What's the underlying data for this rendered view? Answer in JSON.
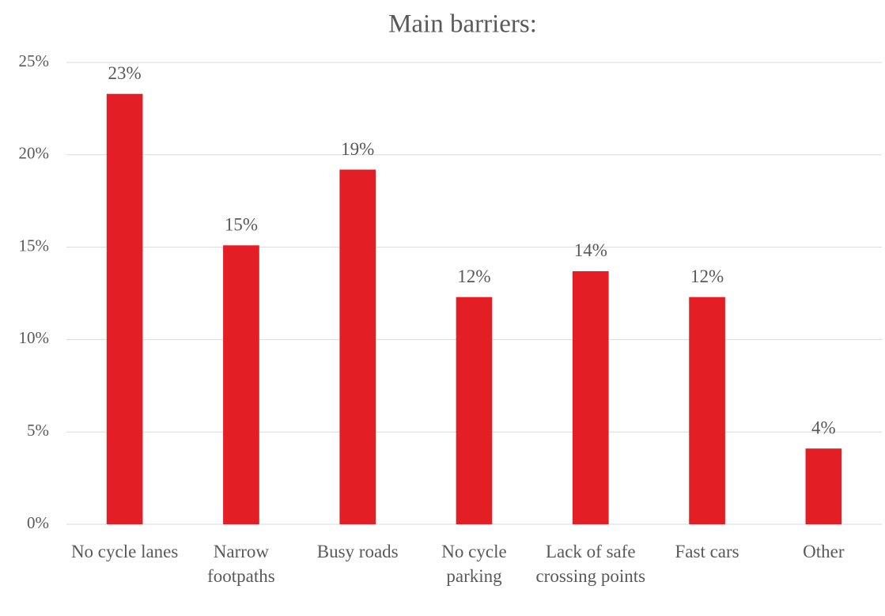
{
  "chart_data": {
    "type": "bar",
    "title": "Main barriers:",
    "categories": [
      "No cycle lanes",
      "Narrow footpaths",
      "Busy roads",
      "No cycle parking",
      "Lack of safe crossing points",
      "Fast cars",
      "Other"
    ],
    "values": [
      23.3,
      15.1,
      19.2,
      12.3,
      13.7,
      12.3,
      4.1
    ],
    "value_labels": [
      "23%",
      "15%",
      "19%",
      "12%",
      "14%",
      "12%",
      "4%"
    ],
    "color": "#e31e24",
    "ylim": [
      0,
      25
    ],
    "yticks": [
      {
        "value": 0,
        "label": "0%"
      },
      {
        "value": 5,
        "label": "5%"
      },
      {
        "value": 10,
        "label": "10%"
      },
      {
        "value": 15,
        "label": "15%"
      },
      {
        "value": 20,
        "label": "20%"
      },
      {
        "value": 25,
        "label": "25%"
      }
    ],
    "grid": true
  }
}
